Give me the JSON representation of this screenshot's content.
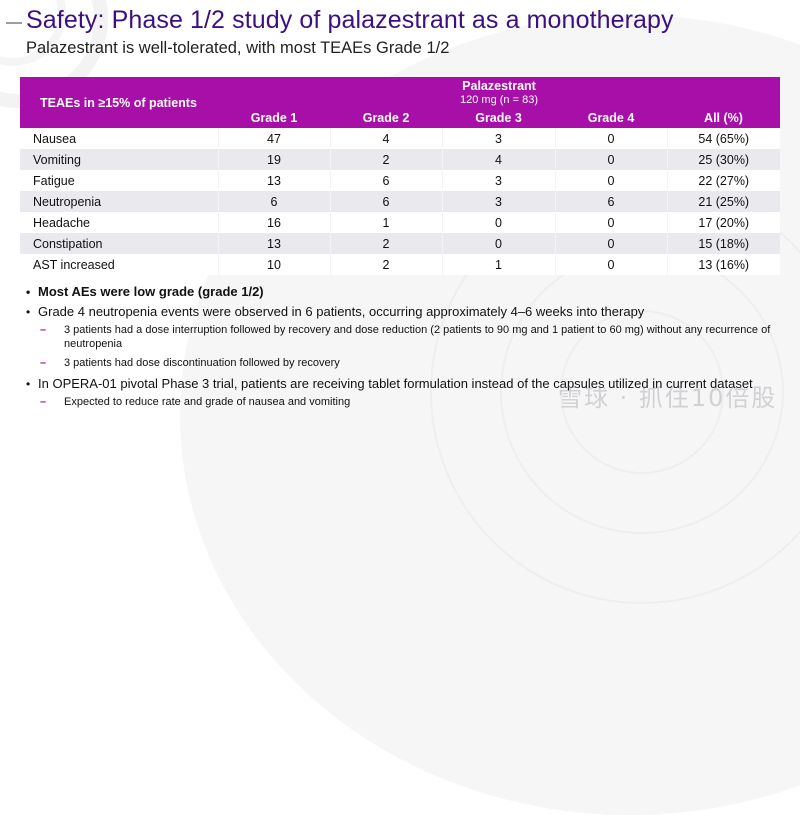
{
  "header": {
    "title": "Safety: Phase 1/2 study of palazestrant as a monotherapy",
    "subtitle": "Palazestrant is well-tolerated, with most TEAEs Grade 1/2"
  },
  "table": {
    "row_header": "TEAEs in ≥15% of patients",
    "group_title": "Palazestrant",
    "group_subtitle": "120 mg (n = 83)",
    "columns": [
      "Grade 1",
      "Grade 2",
      "Grade 3",
      "Grade 4",
      "All (%)"
    ],
    "rows": [
      {
        "ae": "Nausea",
        "values": [
          "47",
          "4",
          "3",
          "0",
          "54 (65%)"
        ]
      },
      {
        "ae": "Vomiting",
        "values": [
          "19",
          "2",
          "4",
          "0",
          "25 (30%)"
        ]
      },
      {
        "ae": "Fatigue",
        "values": [
          "13",
          "6",
          "3",
          "0",
          "22 (27%)"
        ]
      },
      {
        "ae": "Neutropenia",
        "values": [
          "6",
          "6",
          "3",
          "6",
          "21 (25%)"
        ]
      },
      {
        "ae": "Headache",
        "values": [
          "16",
          "1",
          "0",
          "0",
          "17 (20%)"
        ]
      },
      {
        "ae": "Constipation",
        "values": [
          "13",
          "2",
          "0",
          "0",
          "15 (18%)"
        ]
      },
      {
        "ae": "AST increased",
        "values": [
          "10",
          "2",
          "1",
          "0",
          "13 (16%)"
        ]
      }
    ]
  },
  "bullets": [
    {
      "text": "Most AEs were low grade (grade 1/2)",
      "bold": true,
      "sub": []
    },
    {
      "text": "Grade 4 neutropenia events were observed in 6 patients, occurring approximately 4–6 weeks into therapy",
      "bold": false,
      "sub": [
        "3 patients had a dose interruption followed by recovery and dose reduction (2 patients to 90 mg and 1 patient to 60 mg) without any recurrence of neutropenia",
        "3 patients had dose discontinuation followed by recovery"
      ]
    },
    {
      "text": "In OPERA-01 pivotal Phase 3 trial, patients are receiving tablet formulation instead of the capsules utilized in current dataset",
      "bold": false,
      "sub": [
        "Expected to reduce rate and grade of nausea and vomiting"
      ]
    }
  ],
  "watermark": "雪球 · 抓住10倍股",
  "colors": {
    "title": "#3c1080",
    "table_header": "#a80fa8",
    "row_stripe": "#e9e9ee",
    "sub_dash": "#a80fa8"
  }
}
